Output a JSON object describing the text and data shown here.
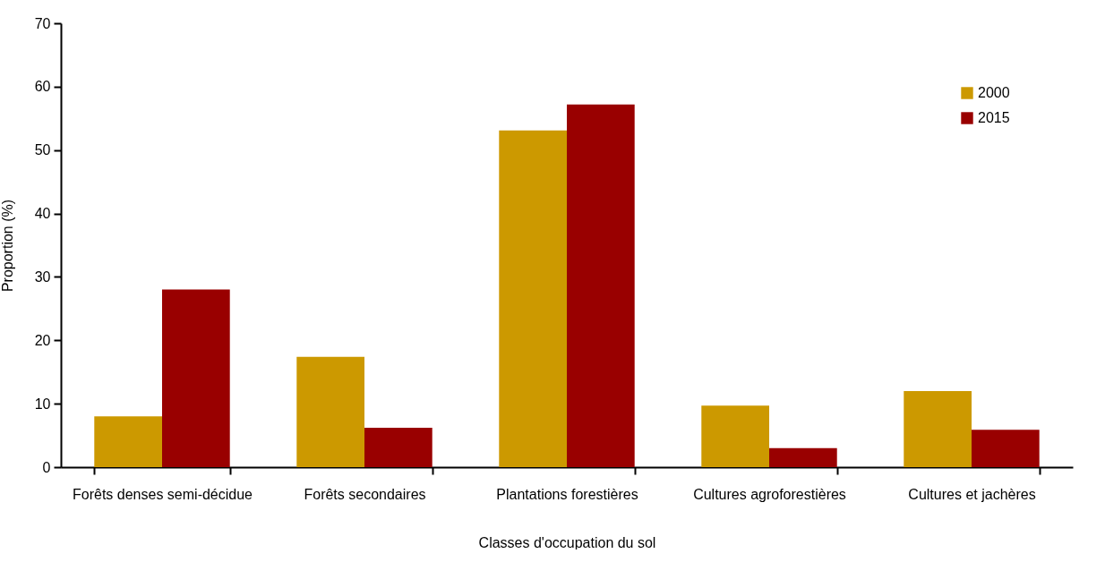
{
  "chart_data": {
    "type": "bar",
    "xlabel": "Classes d'occupation du sol",
    "ylabel": "Proportion (%)",
    "categories": [
      "Forêts denses semi-décidue",
      "Forêts secondaires",
      "Plantations forestières",
      "Cultures agroforestières",
      "Cultures et jachères"
    ],
    "series": [
      {
        "name": "2000",
        "color": "#cc9900",
        "values": [
          8.0,
          17.4,
          53.1,
          9.7,
          12.0
        ]
      },
      {
        "name": "2015",
        "color": "#990000",
        "values": [
          28.0,
          6.2,
          57.2,
          3.0,
          5.9
        ]
      }
    ],
    "ylim": [
      0,
      70
    ],
    "yticks": [
      0,
      10,
      20,
      30,
      40,
      50,
      60,
      70
    ],
    "legend": "top right"
  }
}
